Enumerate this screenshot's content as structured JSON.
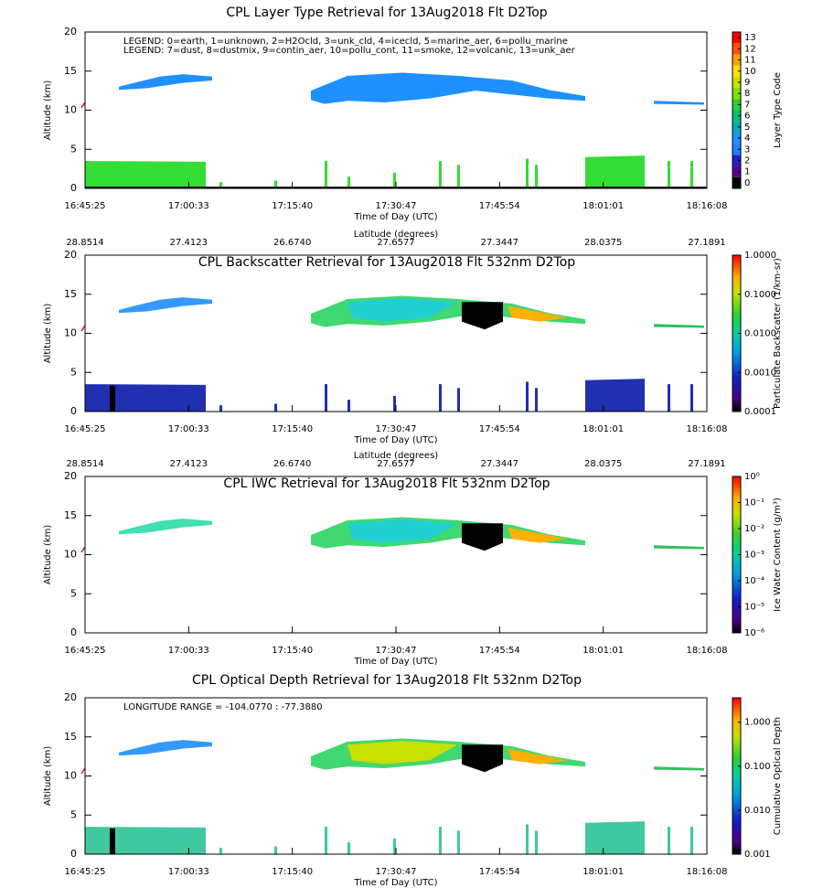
{
  "chart_data": [
    {
      "type": "curtain",
      "title": "CPL Layer Type Retrieval for 13Aug2018 Flt D2Top",
      "xlabel": "Time of Day (UTC)",
      "ylabel": "Altitude (km)",
      "categories": [
        "16:45:25",
        "17:00:33",
        "17:15:40",
        "17:30:47",
        "17:45:54",
        "18:01:01",
        "18:16:08"
      ],
      "ylim": [
        0,
        20
      ],
      "yticks": [
        0,
        5,
        10,
        15,
        20
      ],
      "annotations": [
        "LEGEND: 0=earth, 1=unknown, 2=H2Ocld, 3=unk_cld, 4=icecld, 5=marine_aer, 6=pollu_marine",
        "LEGEND: 7=dust, 8=dustmix, 9=contin_aer, 10=pollu_cont, 11=smoke, 12=volcanic, 13=unk_aer"
      ],
      "colorbar": {
        "label": "Layer Type Code",
        "scale": "discrete",
        "lim": [
          -0.5,
          13.5
        ],
        "ticks": [
          0,
          1,
          2,
          3,
          4,
          5,
          6,
          7,
          8,
          9,
          10,
          11,
          12,
          13
        ]
      }
    },
    {
      "type": "curtain",
      "title": "CPL Backscatter Retrieval for 13Aug2018 Flt 532nm D2Top",
      "xlabel": "Time of Day (UTC)",
      "ylabel": "Altitude (km)",
      "categories": [
        "16:45:25",
        "17:00:33",
        "17:15:40",
        "17:30:47",
        "17:45:54",
        "18:01:01",
        "18:16:08"
      ],
      "top_label": "Latitude (degrees)",
      "top_categories": [
        "28.8514",
        "27.4123",
        "26.6740",
        "27.6577",
        "27.3447",
        "28.0375",
        "27.1891"
      ],
      "ylim": [
        0,
        20
      ],
      "yticks": [
        0,
        5,
        10,
        15,
        20
      ],
      "colorbar": {
        "label": "Particulate Backscatter (1/km-sr)",
        "scale": "log",
        "lim": [
          0.0001,
          1
        ],
        "ticks": [
          0.0001,
          {
            "value": 0.001,
            "label": "0.0010"
          },
          {
            "value": 0.01,
            "label": "0.0100"
          },
          {
            "value": 0.1,
            "label": "0.1000"
          },
          {
            "value": 1,
            "label": "1.0000"
          }
        ]
      }
    },
    {
      "type": "curtain",
      "title": "CPL IWC Retrieval for 13Aug2018 Flt 532nm D2Top",
      "xlabel": "Time of Day (UTC)",
      "ylabel": "Altitude (km)",
      "categories": [
        "16:45:25",
        "17:00:33",
        "17:15:40",
        "17:30:47",
        "17:45:54",
        "18:01:01",
        "18:16:08"
      ],
      "top_label": "Latitude (degrees)",
      "top_categories": [
        "28.8514",
        "27.4123",
        "26.6740",
        "27.6577",
        "27.3447",
        "28.0375",
        "27.1891"
      ],
      "ylim": [
        0,
        20
      ],
      "yticks": [
        0,
        5,
        10,
        15,
        20
      ],
      "colorbar": {
        "label": "Ice Water Content (g/m³)",
        "scale": "log",
        "lim": [
          1e-06,
          1
        ],
        "ticks": [
          {
            "value": 1e-06,
            "label": "10⁻⁶"
          },
          {
            "value": 1e-05,
            "label": "10⁻⁵"
          },
          {
            "value": 0.0001,
            "label": "10⁻⁴"
          },
          {
            "value": 0.001,
            "label": "10⁻³"
          },
          {
            "value": 0.01,
            "label": "10⁻²"
          },
          {
            "value": 0.1,
            "label": "10⁻¹"
          },
          {
            "value": 1,
            "label": "10⁰"
          }
        ]
      }
    },
    {
      "type": "curtain",
      "title": "CPL Optical Depth Retrieval for 13Aug2018 Flt 532nm D2Top",
      "xlabel": "Time of Day (UTC)",
      "ylabel": "Altitude (km)",
      "categories": [
        "16:45:25",
        "17:00:33",
        "17:15:40",
        "17:30:47",
        "17:45:54",
        "18:01:01",
        "18:16:08"
      ],
      "ylim": [
        0,
        20
      ],
      "yticks": [
        0,
        5,
        10,
        15,
        20
      ],
      "annotations": [
        "LONGITUDE RANGE =  -104.0770 :  -77.3880"
      ],
      "colorbar": {
        "label": "Cumulative Optical Depth",
        "scale": "log",
        "lim": [
          0.001,
          3.6
        ],
        "ticks": [
          0.001,
          {
            "value": 0.01,
            "label": "0.010"
          },
          {
            "value": 0.1,
            "label": "0.100"
          },
          {
            "value": 1,
            "label": "1.000"
          }
        ]
      }
    }
  ]
}
